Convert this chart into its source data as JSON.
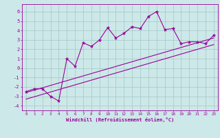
{
  "xlabel": "Windchill (Refroidissement éolien,°C)",
  "bg_color": "#cde8e8",
  "grid_color": "#a8cccc",
  "line_color": "#990099",
  "xlim": [
    -0.5,
    23.5
  ],
  "ylim": [
    -4.5,
    6.8
  ],
  "xticks": [
    0,
    1,
    2,
    3,
    4,
    5,
    6,
    7,
    8,
    9,
    10,
    11,
    12,
    13,
    14,
    15,
    16,
    17,
    18,
    19,
    20,
    21,
    22,
    23
  ],
  "yticks": [
    -4,
    -3,
    -2,
    -1,
    0,
    1,
    2,
    3,
    4,
    5,
    6
  ],
  "main_x": [
    0,
    1,
    2,
    3,
    4,
    5,
    6,
    7,
    8,
    9,
    10,
    11,
    12,
    13,
    14,
    15,
    16,
    17,
    18,
    19,
    20,
    21,
    22,
    23
  ],
  "main_y": [
    -2.5,
    -2.2,
    -2.2,
    -3.0,
    -3.5,
    1.0,
    0.2,
    2.7,
    2.3,
    3.0,
    4.3,
    3.2,
    3.7,
    4.4,
    4.2,
    5.5,
    6.0,
    4.1,
    4.2,
    2.6,
    2.8,
    2.8,
    2.6,
    3.5
  ],
  "line1_x": [
    0,
    23
  ],
  "line1_y": [
    -3.3,
    2.5
  ],
  "line2_x": [
    0,
    23
  ],
  "line2_y": [
    -2.6,
    3.2
  ]
}
